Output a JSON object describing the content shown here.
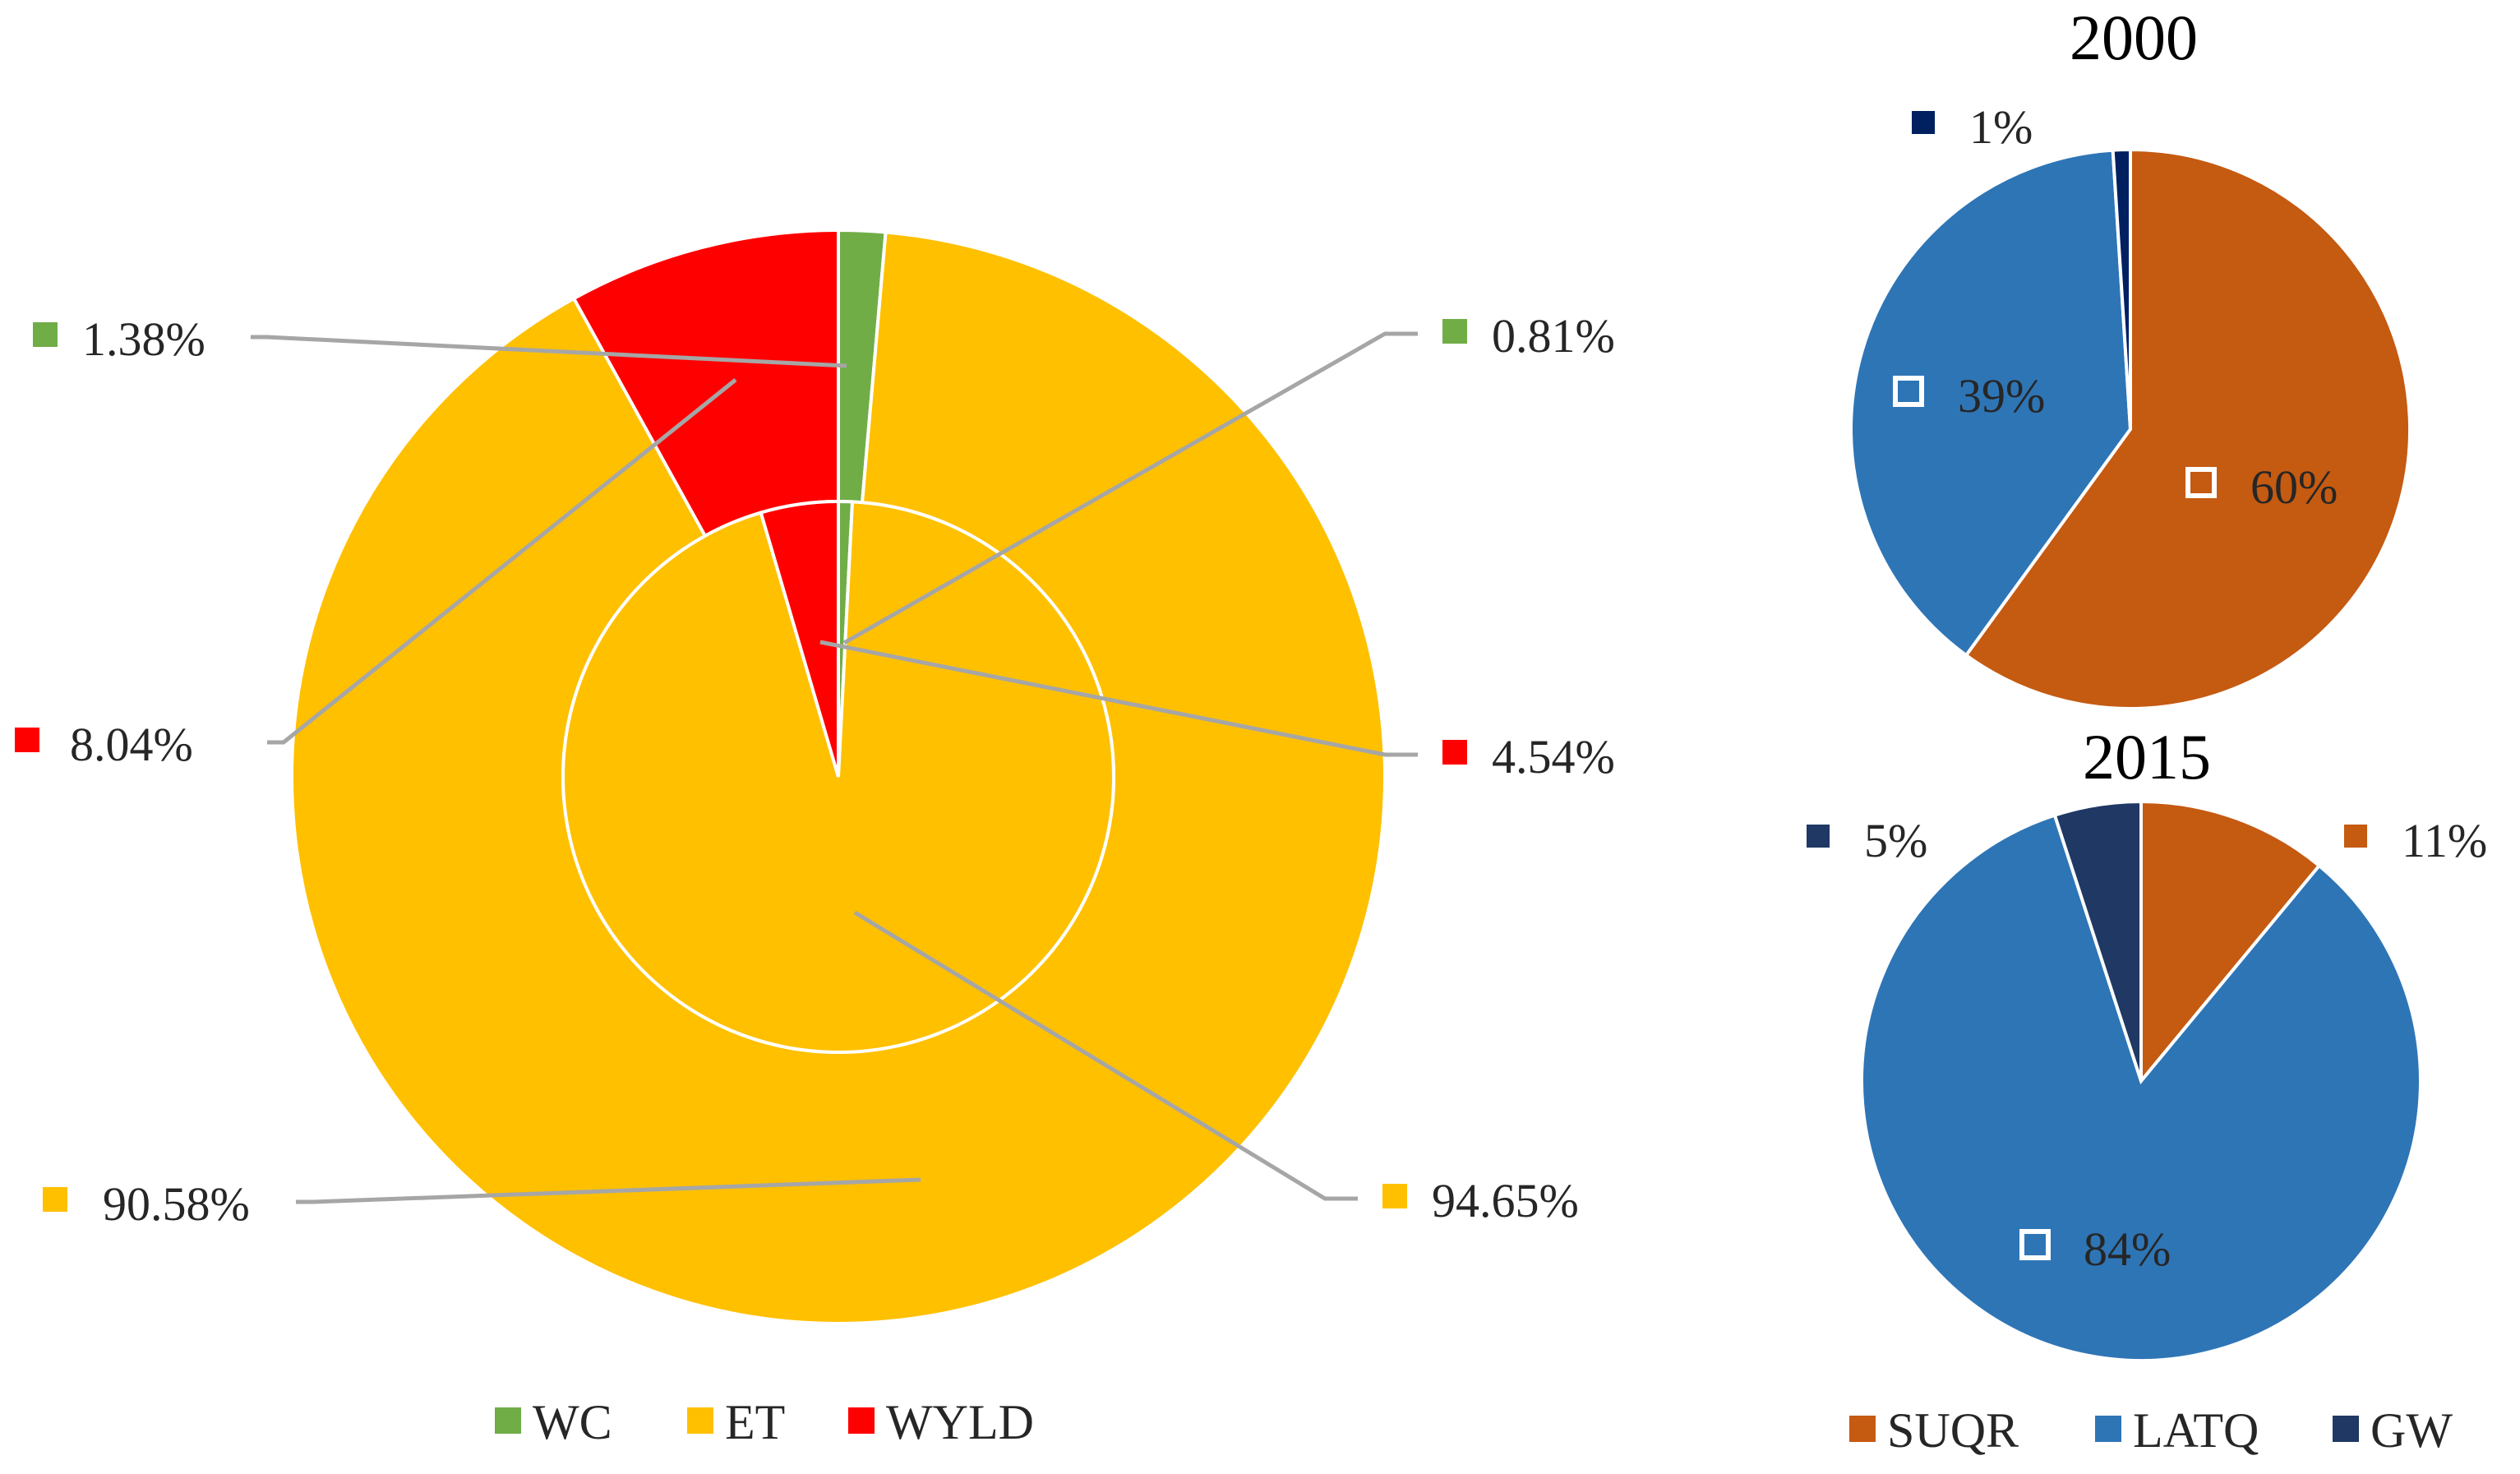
{
  "chart_data": [
    {
      "type": "pie",
      "subtype": "nested-donut",
      "title": "",
      "legend": {
        "placement": "bottom",
        "entries": [
          {
            "name": "WC",
            "color": "#70ad47"
          },
          {
            "name": "ET",
            "color": "#ffc000"
          },
          {
            "name": "WYLD",
            "color": "#ff0000"
          }
        ]
      },
      "rings": [
        {
          "ring": "outer",
          "slices": [
            {
              "name": "WC",
              "value": 1.38,
              "label": "1.38%",
              "color": "#70ad47"
            },
            {
              "name": "ET",
              "value": 90.58,
              "label": "90.58%",
              "color": "#ffc000"
            },
            {
              "name": "WYLD",
              "value": 8.04,
              "label": "8.04%",
              "color": "#ff0000"
            }
          ]
        },
        {
          "ring": "inner",
          "slices": [
            {
              "name": "WC",
              "value": 0.81,
              "label": "0.81%",
              "color": "#70ad47"
            },
            {
              "name": "ET",
              "value": 94.65,
              "label": "94.65%",
              "color": "#ffc000"
            },
            {
              "name": "WYLD",
              "value": 4.54,
              "label": "4.54%",
              "color": "#ff0000"
            }
          ]
        }
      ]
    },
    {
      "type": "pie",
      "title": "2000",
      "slices": [
        {
          "name": "SUQR",
          "value": 60,
          "label": "60%",
          "color": "#c55a11"
        },
        {
          "name": "LATQ",
          "value": 39,
          "label": "39%",
          "color": "#2e75b6"
        },
        {
          "name": "GW",
          "value": 1,
          "label": "1%",
          "color": "#002060"
        }
      ]
    },
    {
      "type": "pie",
      "title": "2015",
      "slices": [
        {
          "name": "SUQR",
          "value": 11,
          "label": "11%",
          "color": "#c55a11"
        },
        {
          "name": "LATQ",
          "value": 84,
          "label": "84%",
          "color": "#2e75b6"
        },
        {
          "name": "GW",
          "value": 5,
          "label": "5%",
          "color": "#1f3864"
        }
      ],
      "legend": {
        "placement": "bottom",
        "entries": [
          {
            "name": "SUQR",
            "color": "#c55a11"
          },
          {
            "name": "LATQ",
            "color": "#2e75b6"
          },
          {
            "name": "GW",
            "color": "#1f3864"
          }
        ]
      }
    }
  ]
}
